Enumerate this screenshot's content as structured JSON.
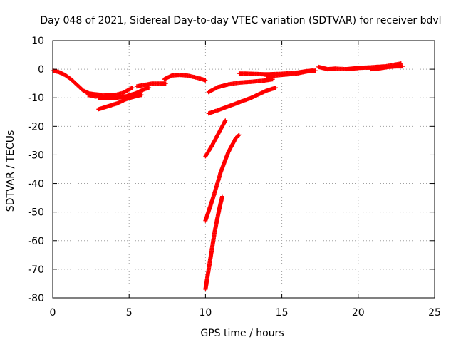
{
  "chart_data": {
    "type": "scatter",
    "title": "Day 048 of 2021, Sidereal Day-to-day VTEC variation (SDTVAR) for receiver bdvl",
    "xlabel": "GPS time / hours",
    "ylabel": "SDTVAR / TECUs",
    "xlim": [
      0,
      25
    ],
    "ylim": [
      -80,
      10
    ],
    "xticks": [
      0,
      5,
      10,
      15,
      20,
      25
    ],
    "yticks": [
      10,
      0,
      -10,
      -20,
      -30,
      -40,
      -50,
      -60,
      -70,
      -80
    ],
    "grid": true,
    "marker": "+",
    "color": "#ff0000",
    "series": [
      {
        "name": "arc-1",
        "points": [
          [
            0.0,
            -0.5
          ],
          [
            0.4,
            -1.0
          ],
          [
            0.8,
            -2.0
          ],
          [
            1.2,
            -3.5
          ],
          [
            1.6,
            -5.5
          ],
          [
            2.0,
            -7.5
          ],
          [
            2.4,
            -8.5
          ],
          [
            2.8,
            -8.8
          ],
          [
            3.2,
            -9.0
          ]
        ]
      },
      {
        "name": "arc-2",
        "points": [
          [
            2.3,
            -9.0
          ],
          [
            2.8,
            -9.6
          ],
          [
            3.5,
            -9.0
          ],
          [
            4.1,
            -9.0
          ],
          [
            4.6,
            -8.3
          ],
          [
            5.2,
            -6.5
          ]
        ]
      },
      {
        "name": "arc-3",
        "points": [
          [
            3.0,
            -10.0
          ],
          [
            3.6,
            -10.0
          ],
          [
            4.2,
            -10.0
          ],
          [
            4.8,
            -9.5
          ],
          [
            5.4,
            -8.5
          ],
          [
            6.0,
            -7.0
          ],
          [
            6.3,
            -6.5
          ]
        ]
      },
      {
        "name": "arc-4",
        "points": [
          [
            3.0,
            -14.0
          ],
          [
            3.6,
            -13.0
          ],
          [
            4.2,
            -12.0
          ],
          [
            4.8,
            -10.5
          ],
          [
            5.4,
            -9.5
          ],
          [
            5.8,
            -9.0
          ]
        ]
      },
      {
        "name": "arc-5",
        "points": [
          [
            5.5,
            -6.0
          ],
          [
            6.0,
            -5.5
          ],
          [
            6.5,
            -5.0
          ],
          [
            7.0,
            -5.0
          ],
          [
            7.4,
            -5.0
          ]
        ]
      },
      {
        "name": "arc-6",
        "points": [
          [
            7.3,
            -3.5
          ],
          [
            7.8,
            -2.2
          ],
          [
            8.3,
            -2.0
          ],
          [
            8.8,
            -2.2
          ],
          [
            9.3,
            -2.8
          ],
          [
            9.8,
            -3.5
          ],
          [
            10.0,
            -3.9
          ]
        ]
      },
      {
        "name": "arc-7",
        "points": [
          [
            10.2,
            -8.0
          ],
          [
            10.8,
            -6.3
          ],
          [
            11.5,
            -5.3
          ],
          [
            12.2,
            -4.7
          ],
          [
            13.0,
            -4.4
          ],
          [
            13.8,
            -4.0
          ],
          [
            14.4,
            -3.5
          ]
        ]
      },
      {
        "name": "arc-8",
        "points": [
          [
            12.2,
            -1.5
          ],
          [
            13.0,
            -1.6
          ],
          [
            14.0,
            -1.8
          ],
          [
            15.0,
            -1.6
          ],
          [
            16.0,
            -1.2
          ],
          [
            16.6,
            -0.7
          ],
          [
            17.0,
            -0.5
          ]
        ]
      },
      {
        "name": "arc-9",
        "points": [
          [
            14.0,
            -2.5
          ],
          [
            15.0,
            -2.0
          ],
          [
            16.0,
            -1.5
          ],
          [
            16.8,
            -0.6
          ],
          [
            17.2,
            -0.5
          ]
        ]
      },
      {
        "name": "arc-10",
        "points": [
          [
            17.4,
            0.8
          ],
          [
            18.0,
            0.0
          ],
          [
            18.5,
            0.2
          ],
          [
            19.2,
            0.0
          ],
          [
            19.8,
            0.3
          ],
          [
            20.2,
            0.5
          ],
          [
            20.8,
            0.6
          ]
        ]
      },
      {
        "name": "arc-11",
        "points": [
          [
            20.5,
            0.5
          ],
          [
            21.2,
            0.8
          ],
          [
            21.8,
            1.0
          ],
          [
            22.3,
            1.5
          ],
          [
            22.8,
            2.0
          ]
        ]
      },
      {
        "name": "arc-12",
        "points": [
          [
            20.8,
            0.0
          ],
          [
            21.4,
            0.3
          ],
          [
            22.0,
            0.8
          ],
          [
            22.5,
            1.0
          ],
          [
            22.9,
            1.0
          ]
        ]
      },
      {
        "name": "arc-13",
        "points": [
          [
            10.2,
            -15.5
          ],
          [
            11.0,
            -14.0
          ],
          [
            12.0,
            -12.0
          ],
          [
            13.0,
            -10.0
          ],
          [
            14.0,
            -7.5
          ],
          [
            14.6,
            -6.5
          ]
        ]
      },
      {
        "name": "arc-14",
        "points": [
          [
            10.0,
            -30.5
          ],
          [
            10.4,
            -27.0
          ],
          [
            10.8,
            -23.0
          ],
          [
            11.2,
            -19.0
          ],
          [
            11.3,
            -18.0
          ]
        ]
      },
      {
        "name": "arc-15",
        "points": [
          [
            10.0,
            -53.0
          ],
          [
            10.5,
            -45.0
          ],
          [
            11.0,
            -36.0
          ],
          [
            11.5,
            -29.0
          ],
          [
            12.0,
            -24.0
          ],
          [
            12.2,
            -23.0
          ]
        ]
      },
      {
        "name": "arc-16",
        "points": [
          [
            10.0,
            -77.0
          ],
          [
            10.3,
            -67.0
          ],
          [
            10.6,
            -57.0
          ],
          [
            10.9,
            -49.0
          ],
          [
            11.1,
            -44.5
          ]
        ]
      }
    ]
  }
}
